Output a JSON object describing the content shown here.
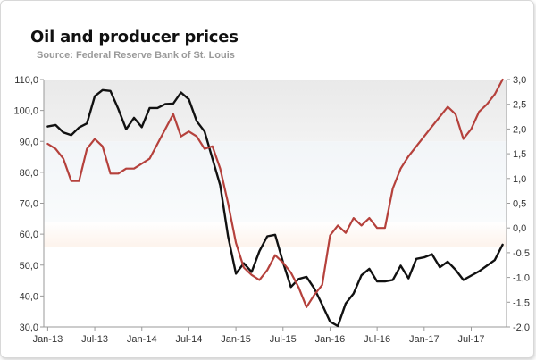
{
  "chart_data": {
    "type": "line",
    "title": "Oil and producer prices",
    "subtitle": "Source: Federal Reserve Bank of St. Louis",
    "x_tick_labels": [
      "Jan-13",
      "Jul-13",
      "Jan-14",
      "Jul-14",
      "Jan-15",
      "Jul-15",
      "Jan-16",
      "Jul-16",
      "Jan-17",
      "Jul-17"
    ],
    "y_left": {
      "range": [
        30,
        110
      ],
      "ticks": [
        "30,0",
        "40,0",
        "50,0",
        "60,0",
        "70,0",
        "80,0",
        "90,0",
        "100,0",
        "110,0"
      ]
    },
    "y_right": {
      "range": [
        -2.0,
        3.0
      ],
      "ticks": [
        "-2,0",
        "-1,5",
        "-1,0",
        "-0,5",
        "0,0",
        "0,5",
        "1,0",
        "1,5",
        "2,0",
        "2,5",
        "3,0"
      ]
    },
    "x_start_month_index": 0,
    "series": [
      {
        "axis": "left",
        "color": "#111111",
        "values": [
          94.8,
          95.3,
          92.9,
          92.0,
          94.5,
          95.8,
          104.6,
          106.6,
          106.3,
          100.5,
          93.9,
          97.6,
          94.6,
          100.8,
          100.8,
          102.1,
          102.2,
          105.8,
          103.6,
          96.5,
          93.2,
          84.4,
          75.8,
          59.3,
          47.2,
          50.6,
          47.8,
          54.5,
          59.3,
          59.8,
          50.9,
          42.9,
          45.5,
          46.2,
          42.4,
          37.2,
          31.7,
          30.3,
          37.6,
          40.8,
          46.7,
          48.8,
          44.7,
          44.7,
          45.2,
          49.8,
          45.7,
          52.0,
          52.5,
          53.5,
          49.3,
          51.1,
          48.5,
          45.2,
          46.6,
          48.0,
          49.8,
          51.6,
          56.6
        ]
      },
      {
        "axis": "right",
        "color": "#b5413c",
        "values": [
          1.7,
          1.6,
          1.4,
          0.95,
          0.95,
          1.6,
          1.8,
          1.65,
          1.1,
          1.1,
          1.2,
          1.2,
          1.3,
          1.4,
          1.7,
          2.0,
          2.3,
          1.85,
          1.95,
          1.85,
          1.6,
          1.65,
          1.2,
          0.5,
          -0.3,
          -0.8,
          -0.95,
          -1.05,
          -0.85,
          -0.55,
          -0.7,
          -0.9,
          -1.2,
          -1.6,
          -1.35,
          -1.15,
          -0.15,
          0.05,
          -0.1,
          0.2,
          0.05,
          0.2,
          0.0,
          0.0,
          0.8,
          1.2,
          1.45,
          1.65,
          1.85,
          2.05,
          2.25,
          2.45,
          2.3,
          1.8,
          2.0,
          2.35,
          2.5,
          2.7,
          3.0
        ]
      }
    ],
    "grid": false,
    "legend": "none"
  }
}
